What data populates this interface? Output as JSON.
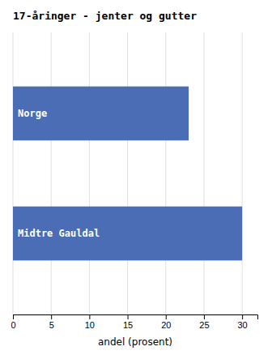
{
  "chart_data": {
    "type": "bar",
    "orientation": "horizontal",
    "title": "17-åringer - jenter og gutter",
    "categories": [
      "Norge",
      "Midtre Gauldal"
    ],
    "values": [
      23.0,
      30.0
    ],
    "color": "#4a6db5",
    "xlabel": "andel (prosent)",
    "xlim": [
      0,
      32
    ],
    "xticks": [
      0,
      5,
      10,
      15,
      20,
      25,
      30
    ],
    "grid": true
  }
}
